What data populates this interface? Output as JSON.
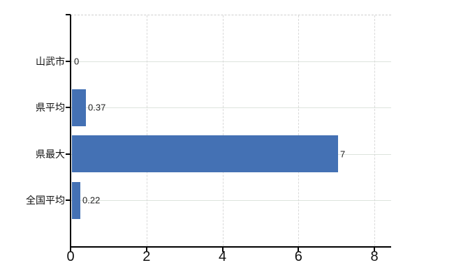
{
  "chart_data": {
    "type": "bar",
    "orientation": "horizontal",
    "title": "",
    "categories": [
      "山武市",
      "県平均",
      "県最大",
      "全国平均"
    ],
    "values": [
      0,
      0.37,
      7,
      0.22
    ],
    "value_labels": [
      "0",
      "0.37",
      "7",
      "0.22"
    ],
    "x_ticks": [
      0,
      2,
      4,
      6,
      8
    ],
    "x_tick_labels": [
      "0",
      "2",
      "4",
      "6",
      "8"
    ],
    "xlim": [
      0,
      8.44
    ],
    "grid": true,
    "legend": null,
    "colors": {
      "bar": "#4471b4",
      "axis": "#000000",
      "grid_horizontal": "#dde4dd",
      "grid_vertical": "#d9d9d9",
      "top_border": "#cfcfcf",
      "text": "#111111",
      "value_label_text": "#222222",
      "background": "#ffffff"
    }
  }
}
